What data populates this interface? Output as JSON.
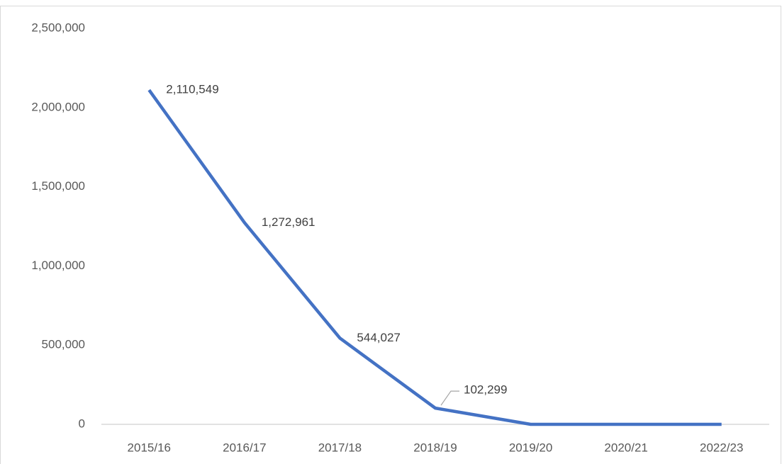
{
  "chart_data": {
    "type": "line",
    "categories": [
      "2015/16",
      "2016/17",
      "2017/18",
      "2018/19",
      "2019/20",
      "2020/21",
      "2022/23"
    ],
    "values": [
      2110549,
      1272961,
      544027,
      102299,
      0,
      0,
      0
    ],
    "value_labels": [
      "2,110,549",
      "1,272,961",
      "544,027",
      "102,299",
      null,
      null,
      null
    ],
    "color": "#4472c4",
    "ylim": [
      0,
      2500000
    ],
    "yticks": [
      0,
      {
        "value": 500000,
        "label": "500,000"
      },
      {
        "value": 1000000,
        "label": "1,000,000"
      },
      {
        "value": 1500000,
        "label": "1,500,000"
      },
      {
        "value": 2000000,
        "label": "2,000,000"
      },
      {
        "value": 2500000,
        "label": "2,500,000"
      }
    ],
    "grid": false
  }
}
